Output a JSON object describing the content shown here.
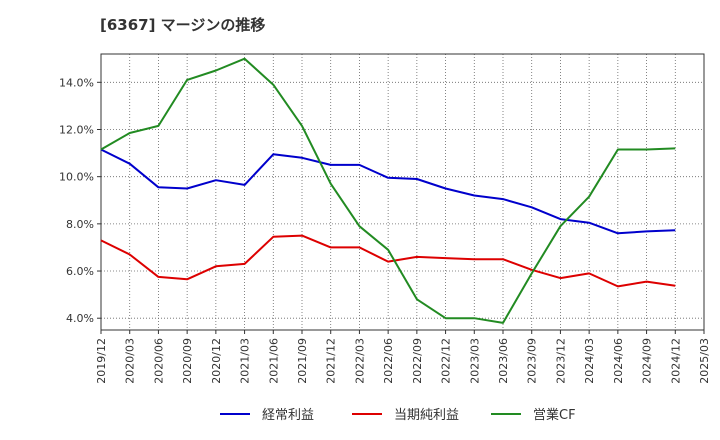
{
  "chart_data": {
    "type": "line",
    "title": "[6367]  マージンの推移",
    "x": [
      "2019/12",
      "2020/03",
      "2020/06",
      "2020/09",
      "2020/12",
      "2021/03",
      "2021/06",
      "2021/09",
      "2021/12",
      "2022/03",
      "2022/06",
      "2022/09",
      "2022/12",
      "2023/03",
      "2023/06",
      "2023/09",
      "2023/12",
      "2024/03",
      "2024/06",
      "2024/09",
      "2024/12"
    ],
    "x_ticks": [
      "2019/12",
      "2020/03",
      "2020/06",
      "2020/09",
      "2020/12",
      "2021/03",
      "2021/06",
      "2021/09",
      "2021/12",
      "2022/03",
      "2022/06",
      "2022/09",
      "2022/12",
      "2023/03",
      "2023/06",
      "2023/09",
      "2023/12",
      "2024/03",
      "2024/06",
      "2024/09",
      "2024/12",
      "2025/03"
    ],
    "y_ticks": [
      "4.0%",
      "6.0%",
      "8.0%",
      "10.0%",
      "12.0%",
      "14.0%"
    ],
    "ylim": [
      3.5,
      15.2
    ],
    "grid": true,
    "legend_position": "bottom",
    "series": [
      {
        "name": "経常利益",
        "color": "#0000cc",
        "values": [
          11.15,
          10.55,
          9.55,
          9.5,
          9.85,
          9.65,
          10.95,
          10.8,
          10.5,
          10.5,
          9.95,
          9.9,
          9.5,
          9.2,
          9.05,
          8.7,
          8.2,
          8.05,
          7.6,
          7.68,
          7.73
        ]
      },
      {
        "name": "当期純利益",
        "color": "#dd0000",
        "values": [
          7.3,
          6.7,
          5.75,
          5.65,
          6.2,
          6.3,
          7.45,
          7.5,
          7.0,
          7.0,
          6.4,
          6.6,
          6.55,
          6.5,
          6.5,
          6.05,
          5.7,
          5.9,
          5.35,
          5.55,
          5.38
        ]
      },
      {
        "name": "営業CF",
        "color": "#228b22",
        "values": [
          11.15,
          11.85,
          12.15,
          14.1,
          14.5,
          15.0,
          13.9,
          12.15,
          9.7,
          7.9,
          6.9,
          4.8,
          4.0,
          4.0,
          3.8,
          5.9,
          7.9,
          9.15,
          11.15,
          11.15,
          11.2
        ]
      }
    ]
  }
}
